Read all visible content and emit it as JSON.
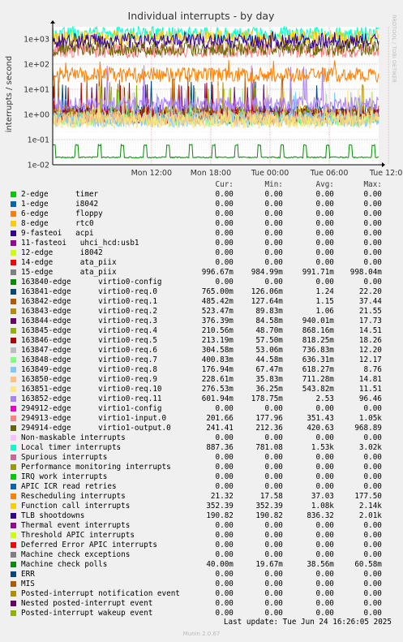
{
  "chart_data": {
    "type": "line",
    "title": "Individual interrupts - by day",
    "ylabel": "interrupts / second",
    "yscale": "log",
    "ylim": [
      0.01,
      3000
    ],
    "yticks": [
      "1e-02",
      "1e-01",
      "1e+00",
      "1e+01",
      "1e+02",
      "1e+03"
    ],
    "xticks": [
      "Mon 12:00",
      "Mon 18:00",
      "Tue 00:00",
      "Tue 06:00",
      "Tue 12:00"
    ],
    "side_label": "RRDTOOL / TOBI OETIKER",
    "grid": true,
    "columns": [
      "Cur:",
      "Min:",
      "Avg:",
      "Max:"
    ],
    "series": [
      {
        "name": "2-edge      timer",
        "color": "#00cc00",
        "cur": "0.00",
        "min": "0.00",
        "avg": "0.00",
        "max": "0.00"
      },
      {
        "name": "1-edge      i8042",
        "color": "#0066b3",
        "cur": "0.00",
        "min": "0.00",
        "avg": "0.00",
        "max": "0.00"
      },
      {
        "name": "6-edge      floppy",
        "color": "#ff8000",
        "cur": "0.00",
        "min": "0.00",
        "avg": "0.00",
        "max": "0.00"
      },
      {
        "name": "8-edge      rtc0",
        "color": "#ffcc00",
        "cur": "0.00",
        "min": "0.00",
        "avg": "0.00",
        "max": "0.00"
      },
      {
        "name": "9-fasteoi   acpi",
        "color": "#330099",
        "cur": "0.00",
        "min": "0.00",
        "avg": "0.00",
        "max": "0.00"
      },
      {
        "name": "11-fasteoi   uhci_hcd:usb1",
        "color": "#990099",
        "cur": "0.00",
        "min": "0.00",
        "avg": "0.00",
        "max": "0.00"
      },
      {
        "name": "12-edge      i8042",
        "color": "#ccff00",
        "cur": "0.00",
        "min": "0.00",
        "avg": "0.00",
        "max": "0.00"
      },
      {
        "name": "14-edge      ata_piix",
        "color": "#ff0000",
        "cur": "0.00",
        "min": "0.00",
        "avg": "0.00",
        "max": "0.00"
      },
      {
        "name": "15-edge      ata_piix",
        "color": "#808080",
        "cur": "996.67m",
        "min": "984.99m",
        "avg": "991.71m",
        "max": "998.04m"
      },
      {
        "name": "163840-edge      virtio0-config",
        "color": "#008f00",
        "cur": "0.00",
        "min": "0.00",
        "avg": "0.00",
        "max": "0.00"
      },
      {
        "name": "163841-edge      virtio0-req.0",
        "color": "#00487d",
        "cur": "765.00m",
        "min": "126.06m",
        "avg": "1.24",
        "max": "22.20"
      },
      {
        "name": "163842-edge      virtio0-req.1",
        "color": "#b35a00",
        "cur": "485.42m",
        "min": "127.64m",
        "avg": "1.15",
        "max": "37.44"
      },
      {
        "name": "163843-edge      virtio0-req.2",
        "color": "#b38f00",
        "cur": "523.47m",
        "min": "89.83m",
        "avg": "1.06",
        "max": "21.55"
      },
      {
        "name": "163844-edge      virtio0-req.3",
        "color": "#6b006b",
        "cur": "376.39m",
        "min": "84.58m",
        "avg": "940.01m",
        "max": "17.73"
      },
      {
        "name": "163845-edge      virtio0-req.4",
        "color": "#8fb300",
        "cur": "210.56m",
        "min": "48.70m",
        "avg": "868.16m",
        "max": "14.51"
      },
      {
        "name": "163846-edge      virtio0-req.5",
        "color": "#b30000",
        "cur": "213.19m",
        "min": "57.50m",
        "avg": "818.25m",
        "max": "18.26"
      },
      {
        "name": "163847-edge      virtio0-req.6",
        "color": "#bebebe",
        "cur": "304.58m",
        "min": "53.06m",
        "avg": "736.83m",
        "max": "12.20"
      },
      {
        "name": "163848-edge      virtio0-req.7",
        "color": "#80ff80",
        "cur": "400.83m",
        "min": "44.58m",
        "avg": "636.31m",
        "max": "12.17"
      },
      {
        "name": "163849-edge      virtio0-req.8",
        "color": "#80c9ff",
        "cur": "176.94m",
        "min": "67.47m",
        "avg": "618.27m",
        "max": "8.76"
      },
      {
        "name": "163850-edge      virtio0-req.9",
        "color": "#ffc080",
        "cur": "228.61m",
        "min": "35.83m",
        "avg": "711.28m",
        "max": "14.81"
      },
      {
        "name": "163851-edge      virtio0-req.10",
        "color": "#ffe680",
        "cur": "276.53m",
        "min": "36.25m",
        "avg": "543.82m",
        "max": "11.51"
      },
      {
        "name": "163852-edge      virtio0-req.11",
        "color": "#aa80ff",
        "cur": "601.94m",
        "min": "178.75m",
        "avg": "2.53",
        "max": "96.46"
      },
      {
        "name": "294912-edge      virtio1-config",
        "color": "#ee00cc",
        "cur": "0.00",
        "min": "0.00",
        "avg": "0.00",
        "max": "0.00"
      },
      {
        "name": "294913-edge      virtio1-input.0",
        "color": "#ff8080",
        "cur": "201.66",
        "min": "177.96",
        "avg": "351.43",
        "max": "1.05k"
      },
      {
        "name": "294914-edge      virtio1-output.0",
        "color": "#666600",
        "cur": "241.41",
        "min": "212.36",
        "avg": "420.63",
        "max": "968.89"
      },
      {
        "name": "Non-maskable interrupts",
        "color": "#ffbfff",
        "cur": "0.00",
        "min": "0.00",
        "avg": "0.00",
        "max": "0.00"
      },
      {
        "name": "Local timer interrupts",
        "color": "#00ffcc",
        "cur": "887.36",
        "min": "781.08",
        "avg": "1.53k",
        "max": "3.02k"
      },
      {
        "name": "Spurious interrupts",
        "color": "#cc6699",
        "cur": "0.00",
        "min": "0.00",
        "avg": "0.00",
        "max": "0.00"
      },
      {
        "name": "Performance monitoring interrupts",
        "color": "#999900",
        "cur": "0.00",
        "min": "0.00",
        "avg": "0.00",
        "max": "0.00"
      },
      {
        "name": "IRQ work interrupts",
        "color": "#00cc00",
        "cur": "0.00",
        "min": "0.00",
        "avg": "0.00",
        "max": "0.00"
      },
      {
        "name": "APIC ICR read retries",
        "color": "#0066b3",
        "cur": "0.00",
        "min": "0.00",
        "avg": "0.00",
        "max": "0.00"
      },
      {
        "name": "Rescheduling interrupts",
        "color": "#ff8000",
        "cur": "21.32",
        "min": "17.58",
        "avg": "37.03",
        "max": "177.50"
      },
      {
        "name": "Function call interrupts",
        "color": "#ffcc00",
        "cur": "352.39",
        "min": "352.39",
        "avg": "1.08k",
        "max": "2.14k"
      },
      {
        "name": "TLB shootdowns",
        "color": "#330099",
        "cur": "190.82",
        "min": "190.82",
        "avg": "836.32",
        "max": "2.01k"
      },
      {
        "name": "Thermal event interrupts",
        "color": "#990099",
        "cur": "0.00",
        "min": "0.00",
        "avg": "0.00",
        "max": "0.00"
      },
      {
        "name": "Threshold APIC interrupts",
        "color": "#ccff00",
        "cur": "0.00",
        "min": "0.00",
        "avg": "0.00",
        "max": "0.00"
      },
      {
        "name": "Deferred Error APIC interrupts",
        "color": "#ff0000",
        "cur": "0.00",
        "min": "0.00",
        "avg": "0.00",
        "max": "0.00"
      },
      {
        "name": "Machine check exceptions",
        "color": "#808080",
        "cur": "0.00",
        "min": "0.00",
        "avg": "0.00",
        "max": "0.00"
      },
      {
        "name": "Machine check polls",
        "color": "#008f00",
        "cur": "40.00m",
        "min": "19.67m",
        "avg": "38.56m",
        "max": "60.58m"
      },
      {
        "name": "ERR",
        "color": "#00487d",
        "cur": "0.00",
        "min": "0.00",
        "avg": "0.00",
        "max": "0.00"
      },
      {
        "name": "MIS",
        "color": "#b35a00",
        "cur": "0.00",
        "min": "0.00",
        "avg": "0.00",
        "max": "0.00"
      },
      {
        "name": "Posted-interrupt notification event",
        "color": "#b38f00",
        "cur": "0.00",
        "min": "0.00",
        "avg": "0.00",
        "max": "0.00"
      },
      {
        "name": "Nested posted-interrupt event",
        "color": "#6b006b",
        "cur": "0.00",
        "min": "0.00",
        "avg": "0.00",
        "max": "0.00"
      },
      {
        "name": "Posted-interrupt wakeup event",
        "color": "#8fb300",
        "cur": "0.00",
        "min": "0.00",
        "avg": "0.00",
        "max": "0.00"
      }
    ]
  },
  "footer": {
    "last_update": "Last update: Tue Jun 24 16:26:05 2025",
    "munin": "Munin 2.0.67"
  }
}
